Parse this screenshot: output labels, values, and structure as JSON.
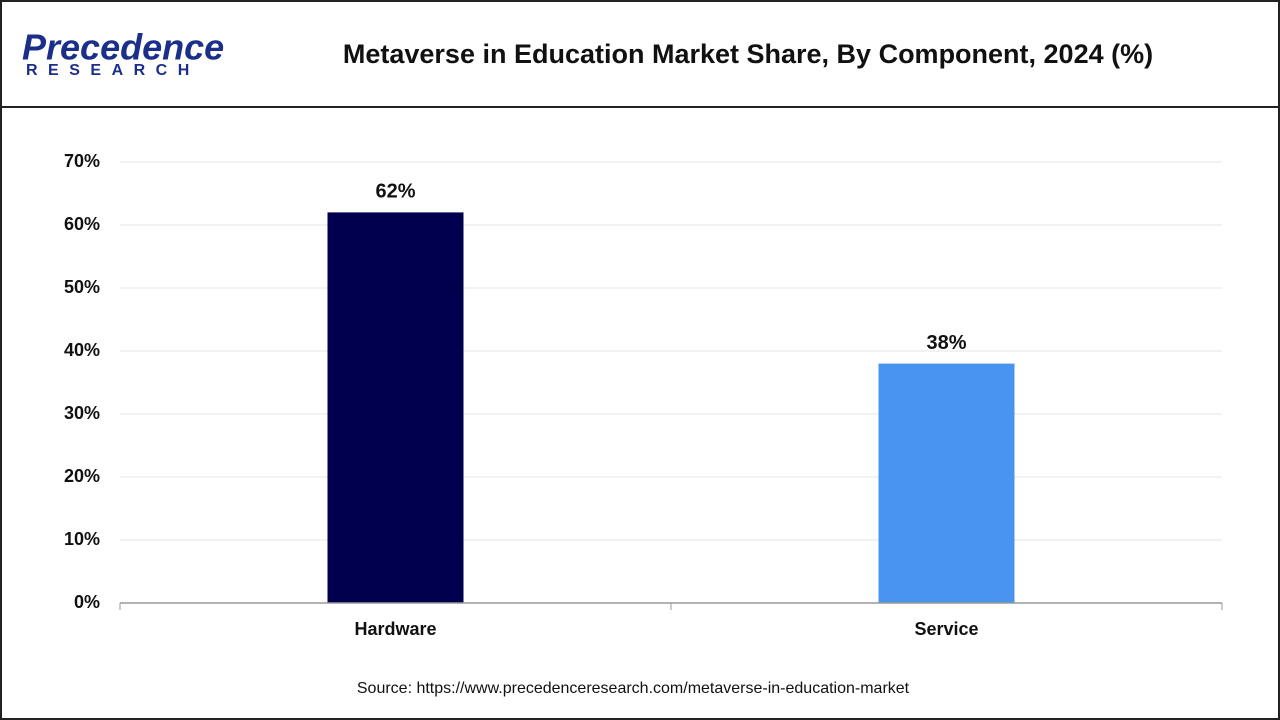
{
  "logo": {
    "name": "Precedence",
    "tagline": "RESEARCH"
  },
  "chart_data": {
    "type": "bar",
    "title": "Metaverse in Education Market Share, By Component, 2024 (%)",
    "categories": [
      "Hardware",
      "Service"
    ],
    "values": [
      62,
      38
    ],
    "value_labels": [
      "62%",
      "38%"
    ],
    "colors": [
      "#00004f",
      "#4894ef"
    ],
    "ylim": [
      0,
      70
    ],
    "yticks": [
      {
        "value": 0,
        "label": "0%"
      },
      {
        "value": 10,
        "label": "10%"
      },
      {
        "value": 20,
        "label": "20%"
      },
      {
        "value": 30,
        "label": "30%"
      },
      {
        "value": 40,
        "label": "40%"
      },
      {
        "value": 50,
        "label": "50%"
      },
      {
        "value": 60,
        "label": "60%"
      },
      {
        "value": 70,
        "label": "70%"
      }
    ],
    "grid": true,
    "source": "Source: https://www.precedenceresearch.com/metaverse-in-education-market"
  }
}
